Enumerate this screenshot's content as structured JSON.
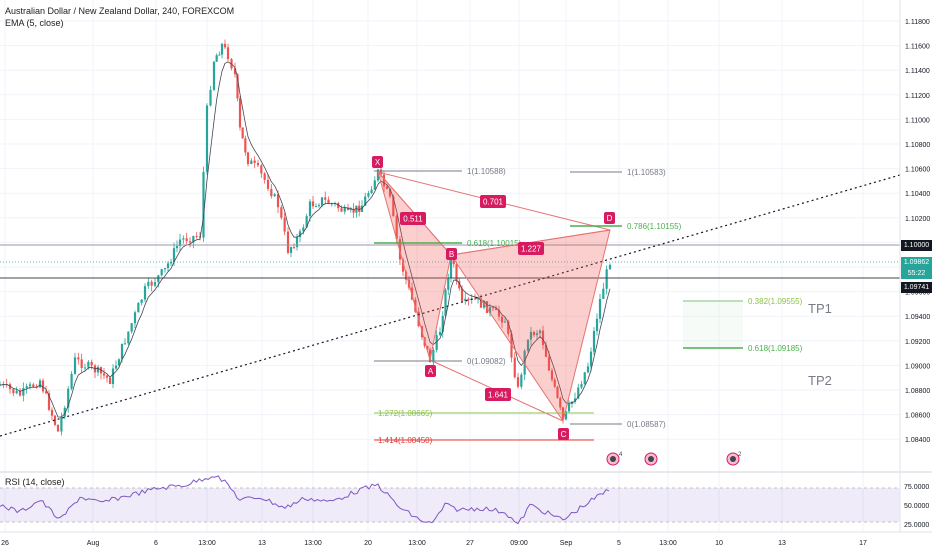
{
  "header": {
    "title": "Australian Dollar / New Zealand Dollar, 240, FOREXCOM",
    "indicator": "EMA (5, close)"
  },
  "rsi": {
    "label": "RSI (14, close)",
    "levels": [
      "75.0000",
      "50.0000",
      "25.0000"
    ]
  },
  "price_axis": {
    "ticks": [
      "1.11800",
      "1.11600",
      "1.11400",
      "1.11200",
      "1.11000",
      "1.10800",
      "1.10600",
      "1.10400",
      "1.10200",
      "1.10000",
      "1.09800",
      "1.09600",
      "1.09400",
      "1.09200",
      "1.09000",
      "1.08800",
      "1.08600",
      "1.08400"
    ],
    "tags": [
      {
        "text": "1.10000",
        "color": "#131722"
      },
      {
        "text": "1.09862",
        "color": "#26a69a"
      },
      {
        "text": "55:22",
        "color": "#26a69a"
      },
      {
        "text": "1.09741",
        "color": "#131722"
      }
    ]
  },
  "time_axis": {
    "labels": [
      "26",
      "Aug",
      "6",
      "13:00",
      "13",
      "13:00",
      "20",
      "13:00",
      "27",
      "09:00",
      "Sep",
      "5",
      "13:00",
      "10",
      "13",
      "17"
    ]
  },
  "pattern": {
    "points": [
      "X",
      "A",
      "B",
      "C",
      "D"
    ],
    "ratios": [
      "0.511",
      "0.701",
      "1.227",
      "1.641"
    ],
    "colors": {
      "pattern": "#d81b60",
      "fib": "#4caf50",
      "fib_ext": "#e53935"
    }
  },
  "fib_labels": {
    "x_top": "1(1.10588)",
    "x_618": "0.618(1.10015)",
    "a_zero": "0(1.09082)",
    "ext_1272": "1.272(1.08665)",
    "ext_1414": "1.414(1.08450)",
    "d_top": "1(1.10583)",
    "d_786": "0.786(1.10155)",
    "c_zero": "0(1.08587)",
    "tp_382": "0.382(1.09555)",
    "tp_618": "0.618(1.09185)"
  },
  "targets": [
    "TP1",
    "TP2"
  ],
  "events": [
    "4",
    "2"
  ],
  "colors": {
    "up": "#26a69a",
    "down": "#ef5350",
    "ema": "#434651",
    "rsi": "#7e57c2"
  }
}
